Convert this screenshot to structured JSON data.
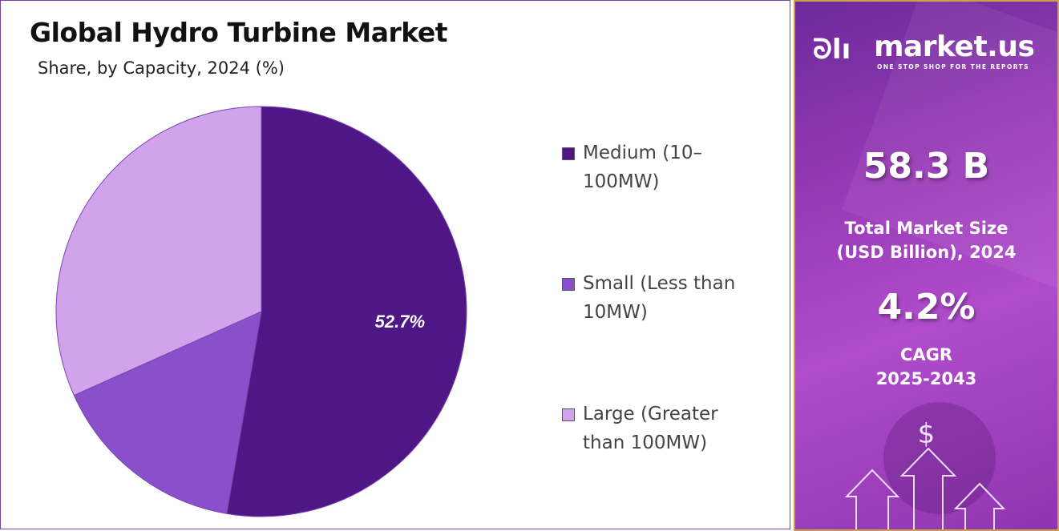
{
  "title": "Global Hydro Turbine Market",
  "subtitle": "Share, by Capacity, 2024 (%)",
  "chart_data": {
    "type": "pie",
    "categories": [
      "Medium (10–100MW)",
      "Small (Less than 10MW)",
      "Large (Greater than 100MW)"
    ],
    "values": [
      52.7,
      15.6,
      31.7
    ],
    "data_labels": [
      "52.7%",
      "",
      ""
    ],
    "colors": [
      "#4f1785",
      "#8a4fcb",
      "#d0a3ea"
    ],
    "start_angle": "top, clockwise",
    "legend_position": "right"
  },
  "legend": [
    {
      "line1": "Medium (10–",
      "line2": "100MW)"
    },
    {
      "line1": "Small (Less than",
      "line2": "10MW)"
    },
    {
      "line1": "Large (Greater",
      "line2": "than 100MW)"
    }
  ],
  "sidebar": {
    "logo_text": "market.us",
    "logo_tagline": "ONE STOP SHOP FOR THE REPORTS",
    "market_size": "58.3 B",
    "market_size_label_1": "Total Market Size",
    "market_size_label_2": "(USD Billion), 2024",
    "cagr": "4.2%",
    "cagr_label_1": "CAGR",
    "cagr_label_2": "2025-2043",
    "dollar_icon": "$"
  }
}
